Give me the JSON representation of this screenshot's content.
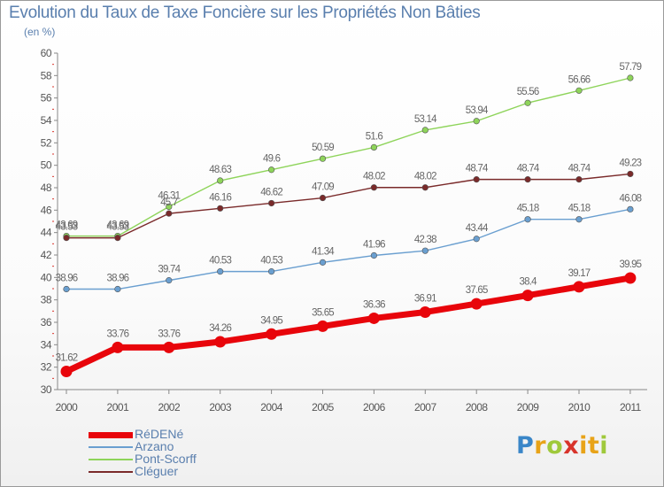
{
  "title": "Evolution du Taux de Taxe Foncière sur les Propriétés Non Bâties",
  "unit": "(en %)",
  "logo": {
    "letters": [
      "P",
      "r",
      "o",
      "x",
      "i",
      "t",
      "i"
    ],
    "colors": [
      "#3a86c8",
      "#e8a318",
      "#9fc93b",
      "#d8342b",
      "#e8a318",
      "#e8a318",
      "#9fc93b"
    ]
  },
  "chart_data": {
    "type": "line",
    "title": "Evolution du Taux de Taxe Foncière sur les Propriétés Non Bâties",
    "ylabel": "(en %)",
    "xlabel": "",
    "x": [
      "2000",
      "2001",
      "2002",
      "2003",
      "2004",
      "2005",
      "2006",
      "2007",
      "2008",
      "2009",
      "2010",
      "2011"
    ],
    "ylim": [
      30,
      60
    ],
    "yticks": [
      "30",
      "32",
      "34",
      "36",
      "38",
      "40",
      "42",
      "44",
      "46",
      "48",
      "50",
      "52",
      "54",
      "56",
      "58",
      "60"
    ],
    "grid": false,
    "legend": "bottom-left",
    "series": [
      {
        "name": "RéDENé",
        "color": "#e8050b",
        "values": [
          31.62,
          33.76,
          33.76,
          34.26,
          34.95,
          35.65,
          36.36,
          36.91,
          37.65,
          38.4,
          39.17,
          39.95
        ],
        "labels": [
          "31.62",
          "33.76",
          "33.76",
          "34.26",
          "34.95",
          "35.65",
          "36.36",
          "36.91",
          "37.65",
          "38.4",
          "39.17",
          "39.95"
        ]
      },
      {
        "name": "Arzano",
        "color": "#6a9fd0",
        "values": [
          38.96,
          38.96,
          39.74,
          40.53,
          40.53,
          41.34,
          41.96,
          42.38,
          43.44,
          45.18,
          45.18,
          46.08
        ],
        "labels": [
          "38.96",
          "38.96",
          "39.74",
          "40.53",
          "40.53",
          "41.34",
          "41.96",
          "42.38",
          "43.44",
          "45.18",
          "45.18",
          "46.08"
        ]
      },
      {
        "name": "Pont-Scorff",
        "color": "#8ed45a",
        "values": [
          43.69,
          43.69,
          46.31,
          48.63,
          49.6,
          50.59,
          51.6,
          53.14,
          53.94,
          55.56,
          56.66,
          57.79
        ],
        "labels": [
          "43.69",
          "43.69",
          "46.31",
          "48.63",
          "49.6",
          "50.59",
          "51.6",
          "53.14",
          "53.94",
          "55.56",
          "56.66",
          "57.79"
        ]
      },
      {
        "name": "Cléguer",
        "color": "#7a2a2a",
        "values": [
          43.53,
          43.53,
          45.7,
          46.16,
          46.62,
          47.09,
          48.02,
          48.02,
          48.74,
          48.74,
          48.74,
          49.23
        ],
        "labels": [
          "43.53",
          "43.53",
          "45.7",
          "46.16",
          "46.62",
          "47.09",
          "48.02",
          "48.02",
          "48.74",
          "48.74",
          "48.74",
          "49.23"
        ]
      }
    ]
  }
}
